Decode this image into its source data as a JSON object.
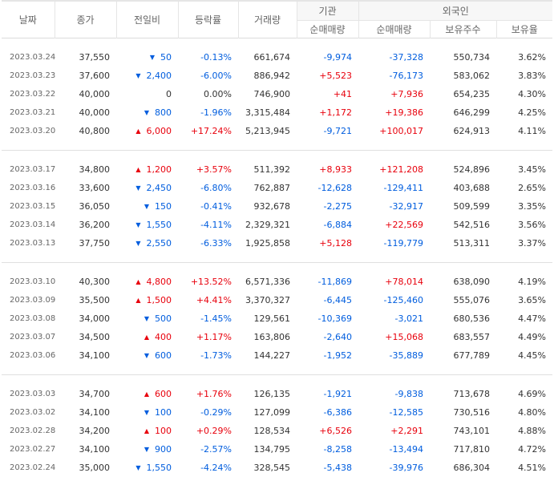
{
  "header": {
    "date": "날짜",
    "close": "종가",
    "change": "전일비",
    "rate": "등락률",
    "volume": "거래량",
    "institution": "기관",
    "foreign": "외국인",
    "inst_net": "순매매량",
    "foreign_net": "순매매량",
    "foreign_holdings": "보유주수",
    "foreign_ratio": "보유율"
  },
  "colors": {
    "up": "#e8000c",
    "down": "#005dde"
  },
  "groups": [
    [
      {
        "date": "2023.03.24",
        "close": "37,550",
        "dir": "down",
        "change": "50",
        "rate": "-0.13%",
        "volume": "661,674",
        "inst": "-9,974",
        "frgn": "-37,328",
        "hold": "550,734",
        "ratio": "3.62%"
      },
      {
        "date": "2023.03.23",
        "close": "37,600",
        "dir": "down",
        "change": "2,400",
        "rate": "-6.00%",
        "volume": "886,942",
        "inst": "+5,523",
        "frgn": "-76,173",
        "hold": "583,062",
        "ratio": "3.83%"
      },
      {
        "date": "2023.03.22",
        "close": "40,000",
        "dir": "none",
        "change": "0",
        "rate": "0.00%",
        "volume": "746,900",
        "inst": "+41",
        "frgn": "+7,936",
        "hold": "654,235",
        "ratio": "4.30%"
      },
      {
        "date": "2023.03.21",
        "close": "40,000",
        "dir": "down",
        "change": "800",
        "rate": "-1.96%",
        "volume": "3,315,484",
        "inst": "+1,172",
        "frgn": "+19,386",
        "hold": "646,299",
        "ratio": "4.25%"
      },
      {
        "date": "2023.03.20",
        "close": "40,800",
        "dir": "up",
        "change": "6,000",
        "rate": "+17.24%",
        "volume": "5,213,945",
        "inst": "-9,721",
        "frgn": "+100,017",
        "hold": "624,913",
        "ratio": "4.11%"
      }
    ],
    [
      {
        "date": "2023.03.17",
        "close": "34,800",
        "dir": "up",
        "change": "1,200",
        "rate": "+3.57%",
        "volume": "511,392",
        "inst": "+8,933",
        "frgn": "+121,208",
        "hold": "524,896",
        "ratio": "3.45%"
      },
      {
        "date": "2023.03.16",
        "close": "33,600",
        "dir": "down",
        "change": "2,450",
        "rate": "-6.80%",
        "volume": "762,887",
        "inst": "-12,628",
        "frgn": "-129,411",
        "hold": "403,688",
        "ratio": "2.65%"
      },
      {
        "date": "2023.03.15",
        "close": "36,050",
        "dir": "down",
        "change": "150",
        "rate": "-0.41%",
        "volume": "932,678",
        "inst": "-2,275",
        "frgn": "-32,917",
        "hold": "509,599",
        "ratio": "3.35%"
      },
      {
        "date": "2023.03.14",
        "close": "36,200",
        "dir": "down",
        "change": "1,550",
        "rate": "-4.11%",
        "volume": "2,329,321",
        "inst": "-6,884",
        "frgn": "+22,569",
        "hold": "542,516",
        "ratio": "3.56%"
      },
      {
        "date": "2023.03.13",
        "close": "37,750",
        "dir": "down",
        "change": "2,550",
        "rate": "-6.33%",
        "volume": "1,925,858",
        "inst": "+5,128",
        "frgn": "-119,779",
        "hold": "513,311",
        "ratio": "3.37%"
      }
    ],
    [
      {
        "date": "2023.03.10",
        "close": "40,300",
        "dir": "up",
        "change": "4,800",
        "rate": "+13.52%",
        "volume": "6,571,336",
        "inst": "-11,869",
        "frgn": "+78,014",
        "hold": "638,090",
        "ratio": "4.19%"
      },
      {
        "date": "2023.03.09",
        "close": "35,500",
        "dir": "up",
        "change": "1,500",
        "rate": "+4.41%",
        "volume": "3,370,327",
        "inst": "-6,445",
        "frgn": "-125,460",
        "hold": "555,076",
        "ratio": "3.65%"
      },
      {
        "date": "2023.03.08",
        "close": "34,000",
        "dir": "down",
        "change": "500",
        "rate": "-1.45%",
        "volume": "129,561",
        "inst": "-10,369",
        "frgn": "-3,021",
        "hold": "680,536",
        "ratio": "4.47%"
      },
      {
        "date": "2023.03.07",
        "close": "34,500",
        "dir": "up",
        "change": "400",
        "rate": "+1.17%",
        "volume": "163,806",
        "inst": "-2,640",
        "frgn": "+15,068",
        "hold": "683,557",
        "ratio": "4.49%"
      },
      {
        "date": "2023.03.06",
        "close": "34,100",
        "dir": "down",
        "change": "600",
        "rate": "-1.73%",
        "volume": "144,227",
        "inst": "-1,952",
        "frgn": "-35,889",
        "hold": "677,789",
        "ratio": "4.45%"
      }
    ],
    [
      {
        "date": "2023.03.03",
        "close": "34,700",
        "dir": "up",
        "change": "600",
        "rate": "+1.76%",
        "volume": "126,135",
        "inst": "-1,921",
        "frgn": "-9,838",
        "hold": "713,678",
        "ratio": "4.69%"
      },
      {
        "date": "2023.03.02",
        "close": "34,100",
        "dir": "down",
        "change": "100",
        "rate": "-0.29%",
        "volume": "127,099",
        "inst": "-6,386",
        "frgn": "-12,585",
        "hold": "730,516",
        "ratio": "4.80%"
      },
      {
        "date": "2023.02.28",
        "close": "34,200",
        "dir": "up",
        "change": "100",
        "rate": "+0.29%",
        "volume": "128,534",
        "inst": "+6,526",
        "frgn": "+2,291",
        "hold": "743,101",
        "ratio": "4.88%"
      },
      {
        "date": "2023.02.27",
        "close": "34,100",
        "dir": "down",
        "change": "900",
        "rate": "-2.57%",
        "volume": "134,795",
        "inst": "-8,258",
        "frgn": "-13,494",
        "hold": "717,810",
        "ratio": "4.72%"
      },
      {
        "date": "2023.02.24",
        "close": "35,000",
        "dir": "down",
        "change": "1,550",
        "rate": "-4.24%",
        "volume": "328,545",
        "inst": "-5,438",
        "frgn": "-39,976",
        "hold": "686,304",
        "ratio": "4.51%"
      }
    ]
  ]
}
